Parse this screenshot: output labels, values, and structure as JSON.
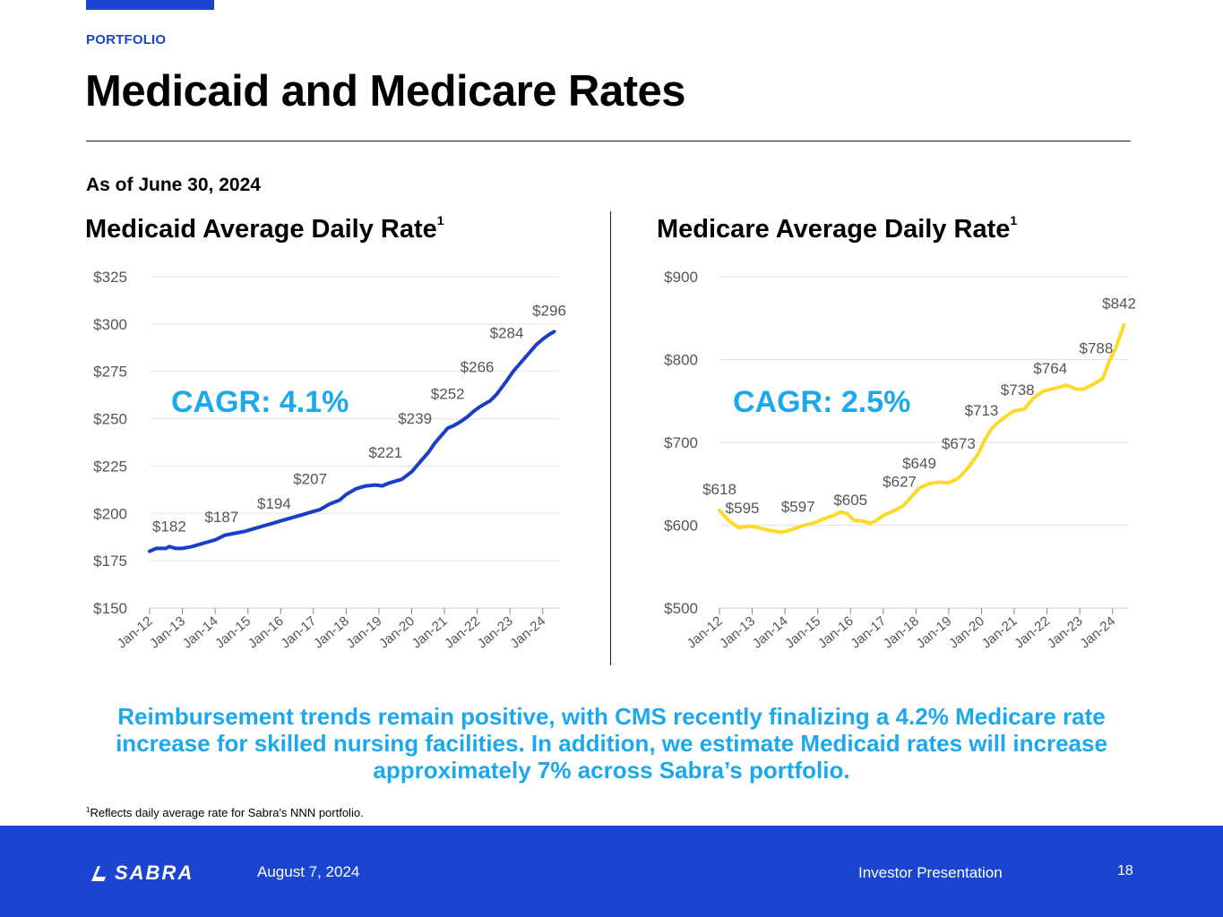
{
  "header": {
    "kicker": "PORTFOLIO",
    "title": "Medicaid and Medicare Rates",
    "as_of": "As of June 30, 2024"
  },
  "colors": {
    "brand_blue": "#1B45CF",
    "accent_cyan": "#1BA8EC",
    "medicaid_line": "#1B3FC4",
    "medicare_line": "#FCD92A",
    "grid": "#E3E3E3",
    "axis_text": "#555555"
  },
  "chart_data": [
    {
      "type": "line",
      "title": "Medicaid Average Daily Rate",
      "title_superscript": "1",
      "annotation": "CAGR: 4.1%",
      "ylim": [
        150,
        325
      ],
      "yticks": [
        150,
        175,
        200,
        225,
        250,
        275,
        300,
        325
      ],
      "ytick_labels": [
        "$150",
        "$175",
        "$200",
        "$225",
        "$250",
        "$275",
        "$300",
        "$325"
      ],
      "xlim": [
        2012.0,
        2024.5
      ],
      "xticks": [
        2012,
        2013,
        2014,
        2015,
        2016,
        2017,
        2018,
        2019,
        2020,
        2021,
        2022,
        2023,
        2024
      ],
      "xtick_labels": [
        "Jan-12",
        "Jan-13",
        "Jan-14",
        "Jan-15",
        "Jan-16",
        "Jan-17",
        "Jan-18",
        "Jan-19",
        "Jan-20",
        "Jan-21",
        "Jan-22",
        "Jan-23",
        "Jan-24"
      ],
      "grid": true,
      "series": [
        {
          "x": [
            2012.0,
            2012.2,
            2012.5,
            2012.6,
            2012.8,
            2013.0,
            2013.3,
            2013.6,
            2013.8,
            2014.0,
            2014.3,
            2014.6,
            2014.9,
            2015.2,
            2015.5,
            2015.8,
            2016.0,
            2016.3,
            2016.6,
            2016.9,
            2017.2,
            2017.5,
            2017.8,
            2018.0,
            2018.3,
            2018.6,
            2018.9,
            2019.1,
            2019.3,
            2019.5,
            2019.7,
            2020.0,
            2020.3,
            2020.5,
            2020.7,
            2020.9,
            2021.1,
            2021.3,
            2021.5,
            2021.7,
            2021.9,
            2022.1,
            2022.4,
            2022.6,
            2022.9,
            2023.1,
            2023.4,
            2023.6,
            2023.8,
            2024.0,
            2024.2,
            2024.35
          ],
          "y": [
            180,
            181.5,
            181.5,
            182.5,
            181.5,
            181.5,
            182.5,
            184,
            185,
            186,
            188.5,
            189.5,
            190.5,
            192,
            193.5,
            195,
            196,
            197.5,
            199,
            200.5,
            202,
            205,
            207,
            210,
            213,
            214.5,
            215,
            214.5,
            216,
            217,
            218,
            222,
            228,
            232,
            237,
            241,
            245,
            246.5,
            248.5,
            251,
            254,
            256.5,
            259.5,
            263,
            270,
            275,
            281,
            285,
            289,
            292,
            294.5,
            296
          ]
        }
      ],
      "data_labels": [
        {
          "x": 2012.6,
          "y": 182,
          "label": "$182"
        },
        {
          "x": 2014.2,
          "y": 187,
          "label": "$187"
        },
        {
          "x": 2015.8,
          "y": 194,
          "label": "$194"
        },
        {
          "x": 2016.9,
          "y": 207,
          "label": "$207"
        },
        {
          "x": 2019.2,
          "y": 221,
          "label": "$221"
        },
        {
          "x": 2020.1,
          "y": 239,
          "label": "$239"
        },
        {
          "x": 2021.1,
          "y": 252,
          "label": "$252"
        },
        {
          "x": 2022.0,
          "y": 266,
          "label": "$266"
        },
        {
          "x": 2022.9,
          "y": 284,
          "label": "$284"
        },
        {
          "x": 2024.2,
          "y": 296,
          "label": "$296"
        }
      ]
    },
    {
      "type": "line",
      "title": "Medicare Average Daily Rate",
      "title_superscript": "1",
      "annotation": "CAGR: 2.5%",
      "ylim": [
        500,
        900
      ],
      "yticks": [
        500,
        600,
        700,
        800,
        900
      ],
      "ytick_labels": [
        "$500",
        "$600",
        "$700",
        "$800",
        "$900"
      ],
      "xlim": [
        2012.0,
        2024.5
      ],
      "xticks": [
        2012,
        2013,
        2014,
        2015,
        2016,
        2017,
        2018,
        2019,
        2020,
        2021,
        2022,
        2023,
        2024
      ],
      "xtick_labels": [
        "Jan-12",
        "Jan-13",
        "Jan-14",
        "Jan-15",
        "Jan-16",
        "Jan-17",
        "Jan-18",
        "Jan-19",
        "Jan-20",
        "Jan-21",
        "Jan-22",
        "Jan-23",
        "Jan-24"
      ],
      "grid": true,
      "series": [
        {
          "x": [
            2012.0,
            2012.3,
            2012.6,
            2012.9,
            2013.2,
            2013.5,
            2013.8,
            2014.0,
            2014.3,
            2014.6,
            2014.9,
            2015.2,
            2015.5,
            2015.7,
            2015.9,
            2016.1,
            2016.4,
            2016.6,
            2016.8,
            2017.0,
            2017.3,
            2017.6,
            2017.9,
            2018.1,
            2018.4,
            2018.7,
            2019.0,
            2019.3,
            2019.6,
            2019.9,
            2020.1,
            2020.3,
            2020.5,
            2020.8,
            2021.0,
            2021.3,
            2021.6,
            2021.9,
            2022.1,
            2022.4,
            2022.6,
            2022.9,
            2023.1,
            2023.4,
            2023.7,
            2023.9,
            2024.1,
            2024.35
          ],
          "y": [
            618,
            605,
            597,
            599,
            597,
            594,
            592,
            592,
            596,
            600,
            603,
            608,
            612,
            616,
            614,
            606,
            605,
            602,
            606,
            612,
            617,
            623,
            636,
            645,
            650,
            652,
            651,
            657,
            670,
            686,
            703,
            716,
            724,
            733,
            738,
            740,
            754,
            762,
            764,
            767,
            769,
            764,
            764,
            770,
            777,
            798,
            814,
            842
          ]
        }
      ],
      "data_labels": [
        {
          "x": 2012.0,
          "y": 618,
          "label": "$618"
        },
        {
          "x": 2012.7,
          "y": 595,
          "label": "$595"
        },
        {
          "x": 2014.4,
          "y": 597,
          "label": "$597"
        },
        {
          "x": 2016.0,
          "y": 605,
          "label": "$605"
        },
        {
          "x": 2017.5,
          "y": 627,
          "label": "$627"
        },
        {
          "x": 2018.1,
          "y": 649,
          "label": "$649"
        },
        {
          "x": 2019.3,
          "y": 673,
          "label": "$673"
        },
        {
          "x": 2020.0,
          "y": 713,
          "label": "$713"
        },
        {
          "x": 2021.1,
          "y": 738,
          "label": "$738"
        },
        {
          "x": 2022.1,
          "y": 764,
          "label": "$764"
        },
        {
          "x": 2023.5,
          "y": 788,
          "label": "$788"
        },
        {
          "x": 2024.2,
          "y": 842,
          "label": "$842"
        }
      ]
    }
  ],
  "message": "Reimbursement trends remain positive, with CMS recently finalizing a 4.2% Medicare rate increase for skilled nursing facilities. In addition, we estimate Medicaid rates will increase approximately 7% across Sabra’s portfolio.",
  "footnote": {
    "marker": "1",
    "text": "Reflects daily average rate for Sabra's NNN portfolio."
  },
  "footer": {
    "logo_text": "SABRA",
    "date": "August 7, 2024",
    "label": "Investor Presentation",
    "page_number": "18"
  }
}
